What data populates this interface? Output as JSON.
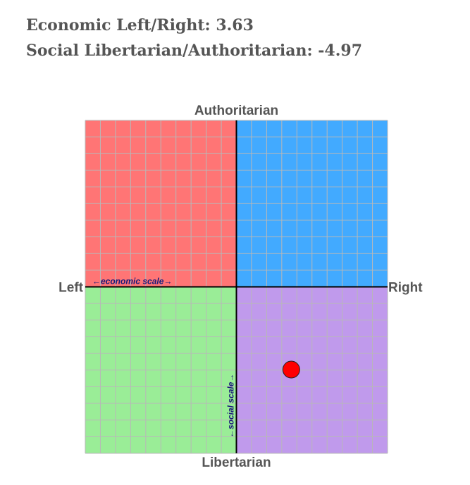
{
  "scores": {
    "economic_label": "Economic Left/Right:",
    "economic_value": "3.63",
    "social_label": "Social Libertarian/Authoritarian:",
    "social_value": "-4.97"
  },
  "chart_data": {
    "type": "scatter",
    "title": "",
    "axis_labels": {
      "top": "Authoritarian",
      "bottom": "Libertarian",
      "left": "Left",
      "right": "Right"
    },
    "scale_labels": {
      "economic": "←economic scale→",
      "social": "←social scale→"
    },
    "xlim": [
      -10,
      10
    ],
    "ylim": [
      -10,
      10
    ],
    "grid": true,
    "grid_step": 1,
    "quadrant_colors": {
      "top_left": "#ff7575",
      "top_right": "#42aaff",
      "bottom_left": "#9aed97",
      "bottom_right": "#c09aec"
    },
    "grid_color": "#b8b8b8",
    "point": {
      "x": 3.63,
      "y": -4.97,
      "color": "#ff0000"
    }
  }
}
